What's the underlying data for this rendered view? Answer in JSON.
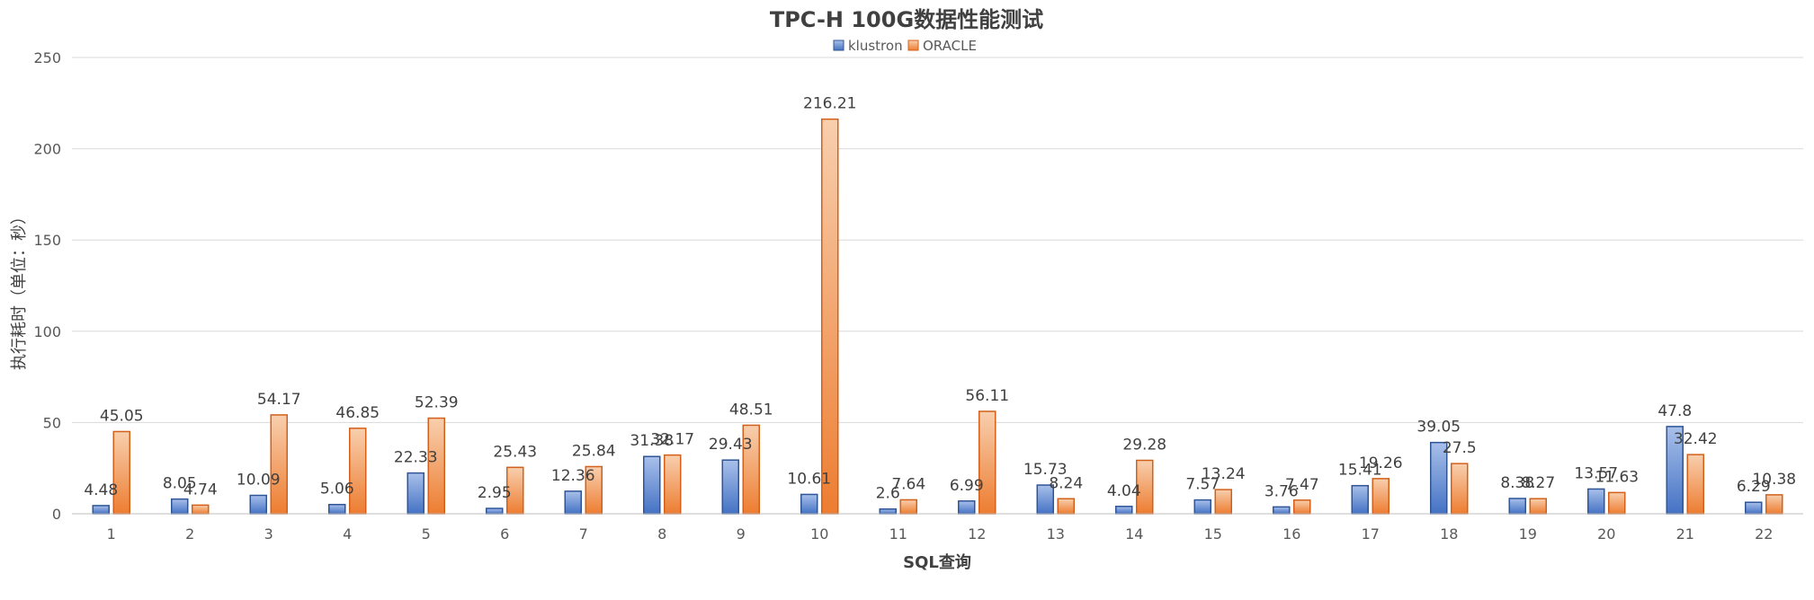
{
  "chart_data": {
    "type": "bar",
    "title": "TPC-H 100G数据性能测试",
    "xlabel": "SQL查询",
    "ylabel": "执行耗时（单位：秒）",
    "ylim": [
      0,
      250
    ],
    "yticks": [
      0,
      50,
      100,
      150,
      200,
      250
    ],
    "grid": true,
    "legend_position": "top",
    "categories": [
      "1",
      "2",
      "3",
      "4",
      "5",
      "6",
      "7",
      "8",
      "9",
      "10",
      "11",
      "12",
      "13",
      "14",
      "15",
      "16",
      "17",
      "18",
      "19",
      "20",
      "21",
      "22"
    ],
    "series": [
      {
        "name": "klustron",
        "color": "#4472C4",
        "values": [
          4.48,
          8.05,
          10.09,
          5.06,
          22.33,
          2.95,
          12.36,
          31.38,
          29.43,
          10.61,
          2.6,
          6.99,
          15.73,
          4.04,
          7.57,
          3.76,
          15.41,
          39.05,
          8.38,
          13.57,
          47.8,
          6.29
        ]
      },
      {
        "name": "ORACLE",
        "color": "#ED7D31",
        "values": [
          45.05,
          4.74,
          54.17,
          46.85,
          52.39,
          25.43,
          25.84,
          32.17,
          48.51,
          216.21,
          7.64,
          56.11,
          8.24,
          29.28,
          13.24,
          7.47,
          19.26,
          27.5,
          8.27,
          11.63,
          32.42,
          10.38
        ]
      }
    ]
  }
}
